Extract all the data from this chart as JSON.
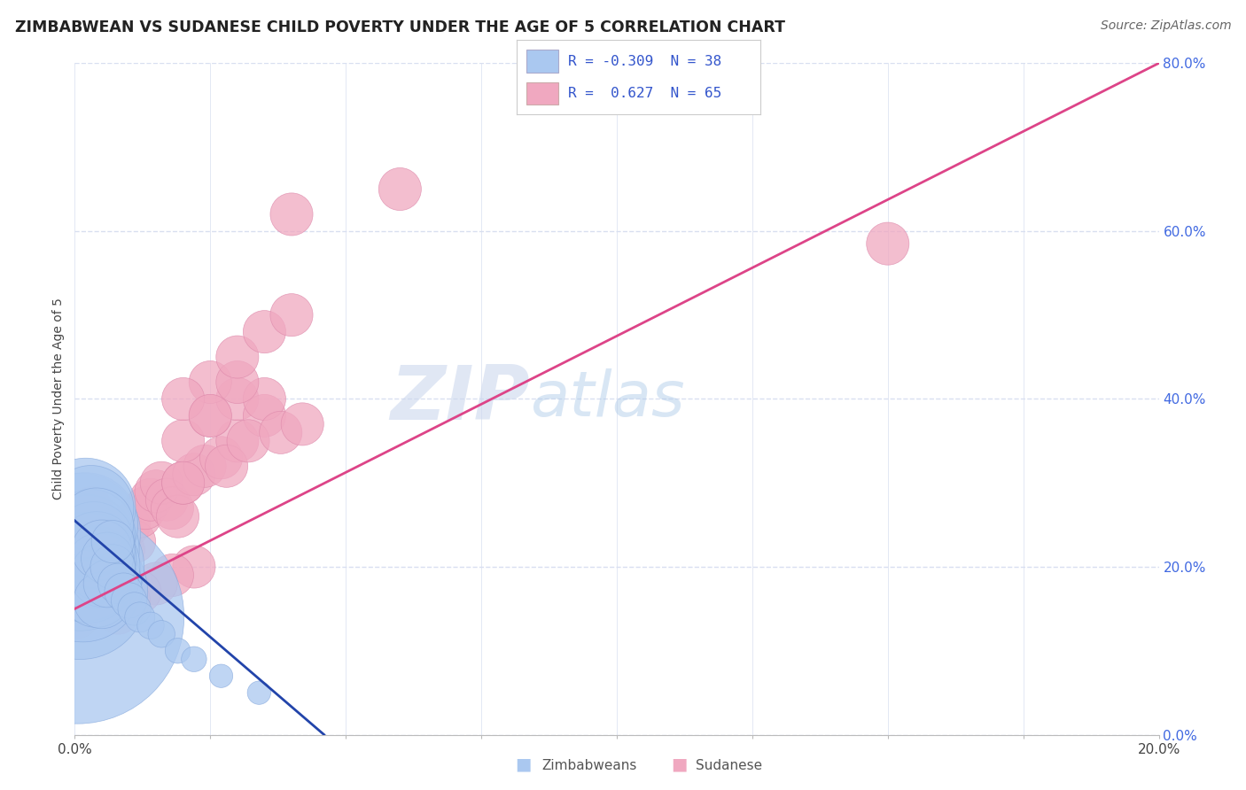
{
  "title": "ZIMBABWEAN VS SUDANESE CHILD POVERTY UNDER THE AGE OF 5 CORRELATION CHART",
  "source": "Source: ZipAtlas.com",
  "ylabel": "Child Poverty Under the Age of 5",
  "xlim": [
    0.0,
    0.2
  ],
  "ylim": [
    0.0,
    0.8
  ],
  "xticks": [
    0.0,
    0.025,
    0.05,
    0.075,
    0.1,
    0.125,
    0.15,
    0.175,
    0.2
  ],
  "ytick_labels": [
    "0.0%",
    "20.0%",
    "40.0%",
    "60.0%",
    "80.0%"
  ],
  "yticks": [
    0.0,
    0.2,
    0.4,
    0.6,
    0.8
  ],
  "legend_r1": "-0.309",
  "legend_n1": "38",
  "legend_r2": "0.627",
  "legend_n2": "65",
  "zim_color": "#aac8f0",
  "sud_color": "#f0a8c0",
  "zim_edge_color": "#88aadd",
  "sud_edge_color": "#dd88aa",
  "zim_line_color": "#2244aa",
  "sud_line_color": "#dd4488",
  "watermark_zip": "ZIP",
  "watermark_atlas": "atlas",
  "background_color": "#ffffff",
  "grid_color": "#d8dff0",
  "zim_trend_x": [
    0.0,
    0.046
  ],
  "zim_trend_y": [
    0.255,
    0.0
  ],
  "sud_trend_x": [
    0.0,
    0.2
  ],
  "sud_trend_y": [
    0.15,
    0.8
  ],
  "zimbabweans_x": [
    0.0005,
    0.001,
    0.001,
    0.001,
    0.0015,
    0.0015,
    0.002,
    0.002,
    0.002,
    0.0025,
    0.0025,
    0.003,
    0.003,
    0.003,
    0.0035,
    0.0035,
    0.004,
    0.004,
    0.004,
    0.0045,
    0.005,
    0.005,
    0.005,
    0.006,
    0.006,
    0.007,
    0.007,
    0.008,
    0.009,
    0.01,
    0.011,
    0.012,
    0.014,
    0.016,
    0.019,
    0.022,
    0.027,
    0.034
  ],
  "zimbabweans_y": [
    0.14,
    0.17,
    0.2,
    0.24,
    0.18,
    0.22,
    0.2,
    0.25,
    0.27,
    0.19,
    0.23,
    0.21,
    0.24,
    0.27,
    0.2,
    0.23,
    0.22,
    0.25,
    0.17,
    0.2,
    0.19,
    0.22,
    0.16,
    0.21,
    0.18,
    0.2,
    0.23,
    0.18,
    0.17,
    0.16,
    0.15,
    0.14,
    0.13,
    0.12,
    0.1,
    0.09,
    0.07,
    0.05
  ],
  "zimbabweans_size": [
    500,
    200,
    180,
    160,
    150,
    140,
    130,
    120,
    110,
    100,
    95,
    90,
    85,
    80,
    75,
    70,
    65,
    60,
    55,
    50,
    45,
    40,
    35,
    30,
    25,
    22,
    20,
    18,
    16,
    14,
    12,
    10,
    8,
    8,
    7,
    7,
    6,
    6
  ],
  "sudanese_x": [
    0.0005,
    0.001,
    0.001,
    0.001,
    0.0015,
    0.002,
    0.002,
    0.002,
    0.003,
    0.003,
    0.003,
    0.004,
    0.004,
    0.004,
    0.005,
    0.005,
    0.005,
    0.006,
    0.006,
    0.007,
    0.007,
    0.008,
    0.008,
    0.009,
    0.01,
    0.011,
    0.012,
    0.013,
    0.014,
    0.015,
    0.016,
    0.017,
    0.018,
    0.019,
    0.02,
    0.022,
    0.024,
    0.027,
    0.03,
    0.02,
    0.025,
    0.03,
    0.035,
    0.025,
    0.035,
    0.02,
    0.03,
    0.025,
    0.15,
    0.04,
    0.06,
    0.03,
    0.035,
    0.04,
    0.02,
    0.028,
    0.032,
    0.038,
    0.042,
    0.022,
    0.018,
    0.015,
    0.012,
    0.01,
    0.008
  ],
  "sudanese_y": [
    0.14,
    0.17,
    0.2,
    0.24,
    0.18,
    0.16,
    0.22,
    0.25,
    0.19,
    0.23,
    0.27,
    0.2,
    0.24,
    0.17,
    0.21,
    0.25,
    0.18,
    0.22,
    0.19,
    0.23,
    0.2,
    0.24,
    0.21,
    0.22,
    0.25,
    0.23,
    0.26,
    0.27,
    0.28,
    0.29,
    0.3,
    0.28,
    0.27,
    0.26,
    0.3,
    0.31,
    0.32,
    0.33,
    0.35,
    0.35,
    0.38,
    0.4,
    0.38,
    0.42,
    0.4,
    0.4,
    0.42,
    0.38,
    0.585,
    0.62,
    0.65,
    0.45,
    0.48,
    0.5,
    0.3,
    0.32,
    0.35,
    0.36,
    0.37,
    0.2,
    0.19,
    0.18,
    0.17,
    0.16,
    0.145
  ],
  "sudanese_size": [
    20,
    20,
    20,
    20,
    20,
    20,
    20,
    20,
    20,
    20,
    20,
    20,
    20,
    20,
    20,
    20,
    20,
    20,
    20,
    20,
    20,
    20,
    20,
    20,
    20,
    20,
    20,
    20,
    20,
    20,
    20,
    20,
    20,
    20,
    20,
    20,
    20,
    20,
    20,
    20,
    20,
    20,
    20,
    20,
    20,
    20,
    20,
    20,
    20,
    20,
    20,
    20,
    20,
    20,
    20,
    20,
    20,
    20,
    20,
    20,
    20,
    20,
    20,
    20,
    20
  ]
}
